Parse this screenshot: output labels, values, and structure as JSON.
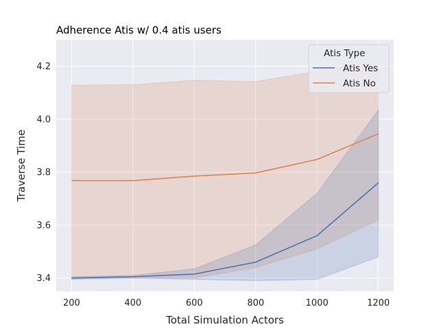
{
  "chart_data": {
    "type": "line",
    "title": "Adherence Atis w/ 0.4 atis users",
    "xlabel": "Total Simulation Actors",
    "ylabel": "Traverse Time",
    "xlim": [
      150,
      1250
    ],
    "ylim": [
      3.35,
      4.3
    ],
    "xticks": [
      200,
      400,
      600,
      800,
      1000,
      1200
    ],
    "yticks": [
      3.4,
      3.6,
      3.8,
      4.0,
      4.2
    ],
    "xtick_labels": [
      "200",
      "400",
      "600",
      "800",
      "1000",
      "1200"
    ],
    "ytick_labels": [
      "3.4",
      "3.6",
      "3.8",
      "4.0",
      "4.2"
    ],
    "grid": true,
    "background": "#eaeaf2",
    "legend": {
      "title": "Atis Type",
      "placement": "top-right"
    },
    "series": [
      {
        "name": "Atis Yes",
        "color": "#4c72b0",
        "x": [
          200,
          400,
          600,
          800,
          1000,
          1200
        ],
        "y": [
          3.4,
          3.405,
          3.415,
          3.46,
          3.56,
          3.76
        ],
        "ci_lower": [
          3.395,
          3.4,
          3.395,
          3.39,
          3.395,
          3.48
        ],
        "ci_upper": [
          3.405,
          3.41,
          3.435,
          3.525,
          3.72,
          4.035
        ]
      },
      {
        "name": "Atis No",
        "color": "#dd8452",
        "x": [
          200,
          400,
          600,
          800,
          1000,
          1200
        ],
        "y": [
          3.768,
          3.768,
          3.785,
          3.797,
          3.848,
          3.945
        ],
        "ci_lower": [
          3.4,
          3.4,
          3.4,
          3.44,
          3.51,
          3.62
        ],
        "ci_upper": [
          4.128,
          4.13,
          4.147,
          4.142,
          4.18,
          4.22
        ]
      }
    ]
  }
}
